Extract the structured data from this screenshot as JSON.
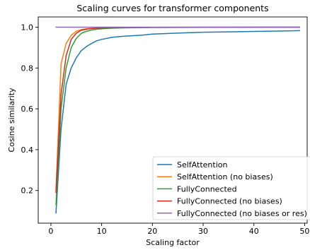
{
  "chart_data": {
    "type": "line",
    "title": "Scaling curves for transformer components",
    "xlabel": "Scaling factor",
    "ylabel": "Cosine similarity",
    "xlim": [
      -2.5,
      50.5
    ],
    "ylim": [
      0.04,
      1.05
    ],
    "xticks": [
      0,
      10,
      20,
      30,
      40,
      50
    ],
    "yticks": [
      0.2,
      0.4,
      0.6,
      0.8,
      1.0
    ],
    "xtick_labels": [
      "0",
      "10",
      "20",
      "30",
      "40",
      "50"
    ],
    "ytick_labels": [
      "0.2",
      "0.4",
      "0.6",
      "0.8",
      "1.0"
    ],
    "grid": false,
    "legend_position": "lower-right",
    "series": [
      {
        "name": "SelfAttention",
        "color": "#1f77b4",
        "x": [
          1,
          2,
          3,
          4,
          5,
          6,
          7,
          8,
          9,
          10,
          12,
          14,
          16,
          18,
          20,
          25,
          30,
          35,
          40,
          45,
          49
        ],
        "y": [
          0.09,
          0.5,
          0.72,
          0.8,
          0.85,
          0.885,
          0.905,
          0.92,
          0.933,
          0.94,
          0.95,
          0.955,
          0.958,
          0.961,
          0.966,
          0.971,
          0.975,
          0.977,
          0.979,
          0.981,
          0.983
        ]
      },
      {
        "name": "SelfAttention (no biases)",
        "color": "#ff7f0e",
        "x": [
          1,
          2,
          3,
          4,
          5,
          6,
          7,
          8,
          9,
          10,
          12,
          15,
          20,
          30,
          40,
          49
        ],
        "y": [
          0.2,
          0.82,
          0.92,
          0.96,
          0.98,
          0.988,
          0.992,
          0.994,
          0.995,
          0.996,
          0.997,
          0.998,
          0.999,
          0.999,
          1.0,
          1.0
        ]
      },
      {
        "name": "FullyConnected",
        "color": "#2ca02c",
        "x": [
          1,
          2,
          3,
          4,
          5,
          6,
          7,
          8,
          9,
          10,
          12,
          15,
          20,
          30,
          40,
          49
        ],
        "y": [
          0.13,
          0.6,
          0.8,
          0.9,
          0.945,
          0.97,
          0.98,
          0.986,
          0.99,
          0.992,
          0.995,
          0.997,
          0.998,
          0.999,
          0.999,
          1.0
        ]
      },
      {
        "name": "FullyConnected (no biases)",
        "color": "#d62728",
        "x": [
          1,
          2,
          3,
          4,
          5,
          6,
          7,
          8,
          9,
          10,
          12,
          15,
          20,
          30,
          40,
          49
        ],
        "y": [
          0.19,
          0.67,
          0.86,
          0.94,
          0.97,
          0.985,
          0.99,
          0.993,
          0.995,
          0.996,
          0.997,
          0.998,
          0.999,
          1.0,
          1.0,
          1.0
        ]
      },
      {
        "name": "FullyConnected (no biases or res)",
        "color": "#9467bd",
        "x": [
          1,
          49
        ],
        "y": [
          1.0,
          1.0
        ]
      }
    ]
  }
}
